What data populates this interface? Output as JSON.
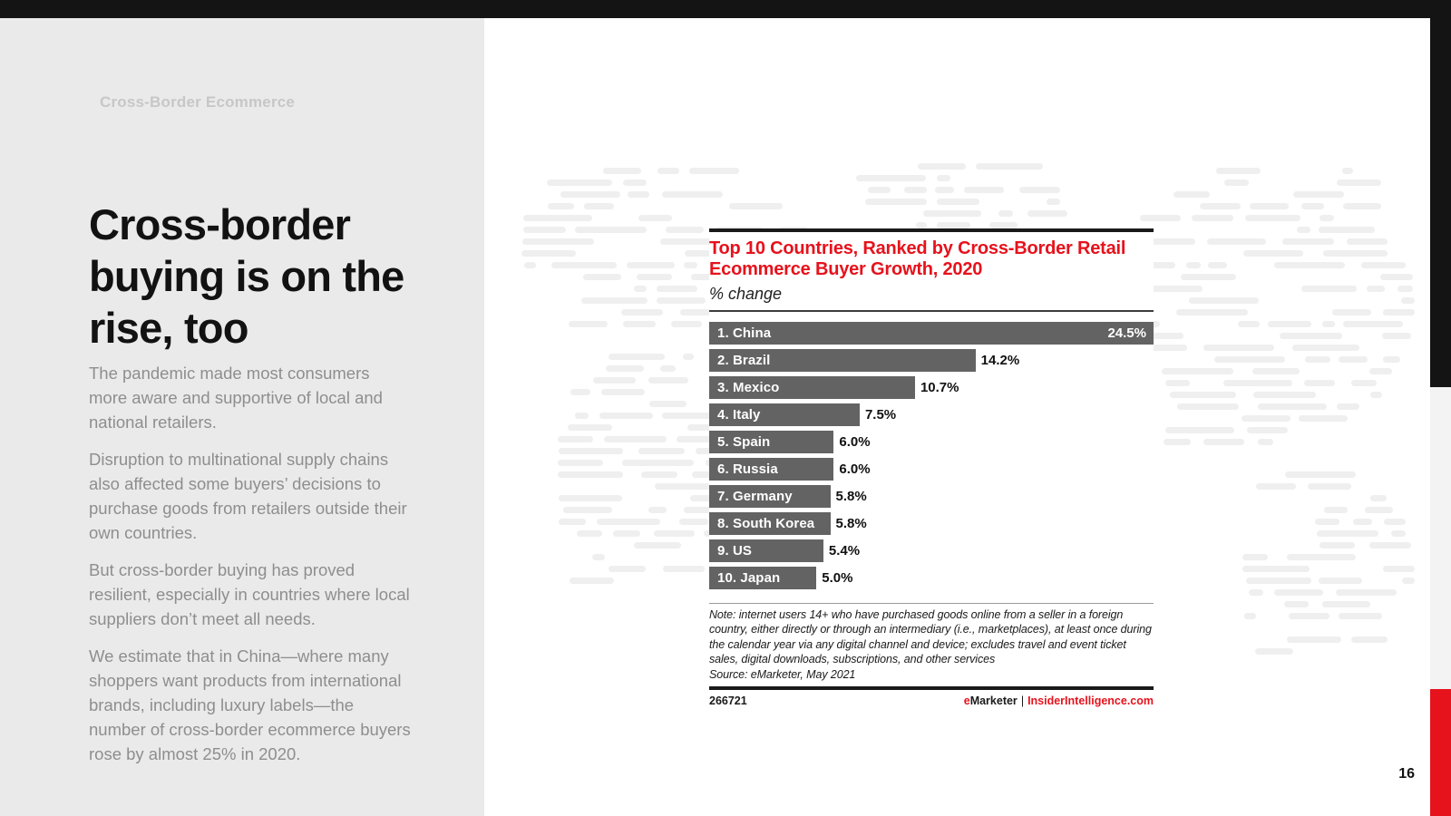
{
  "page": {
    "eyebrow": "Cross-Border Ecommerce",
    "title": "Cross-border buying is on the rise, too",
    "paragraphs": [
      "The pandemic made most consumers more aware and supportive of local and national retailers.",
      "Disruption to multinational supply chains also affected some buyers’ decisions to purchase goods from retailers outside their own countries.",
      "But cross-border buying has proved resilient, especially in countries where local suppliers don’t meet all needs.",
      "We estimate that in China—where many shoppers want products from international brands, including luxury labels—the number of cross-border ecommerce buyers rose by almost 25% in 2020."
    ],
    "page_number": "16"
  },
  "chart": {
    "subtitle": "% change",
    "note": "Note: internet users 14+ who have purchased goods online from a seller in a foreign country, either directly or through an intermediary (i.e., marketplaces), at least once during the calendar year via any digital channel and device; excludes travel and event ticket sales, digital downloads, subscriptions, and other services",
    "source": "Source: eMarketer, May 2021",
    "chart_id": "266721",
    "brand": {
      "prefix": "e",
      "rest": "Marketer",
      "separator": "|",
      "site": "InsiderIntelligence.com"
    }
  },
  "chart_data": {
    "type": "bar",
    "orientation": "horizontal",
    "title": "Top 10 Countries, Ranked by Cross-Border Retail Ecommerce Buyer Growth, 2020",
    "subtitle": "% change",
    "categories": [
      "1. China",
      "2. Brazil",
      "3. Mexico",
      "4. Italy",
      "5. Spain",
      "6. Russia",
      "7. Germany",
      "8. South Korea",
      "9. US",
      "10. Japan"
    ],
    "values": [
      24.5,
      14.2,
      10.7,
      7.5,
      6.0,
      6.0,
      5.8,
      5.8,
      5.4,
      5.0
    ],
    "value_labels": [
      "24.5%",
      "14.2%",
      "10.7%",
      "7.5%",
      "6.0%",
      "6.0%",
      "5.8%",
      "5.8%",
      "5.4%",
      "5.0%"
    ],
    "xlim": [
      0,
      24.5
    ],
    "grid": false,
    "legend": false,
    "bar_color": "#636363"
  },
  "colors": {
    "accent_red": "#e6121c",
    "bar_gray": "#636363",
    "sidebar_gray": "#eaeaea",
    "chrome_black": "#141414"
  }
}
